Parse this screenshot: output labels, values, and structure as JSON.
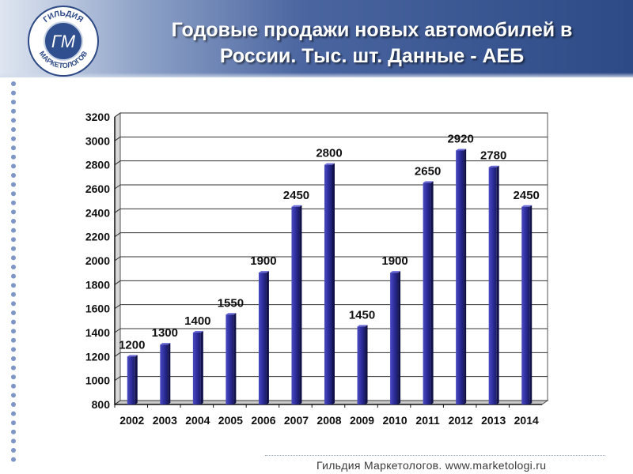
{
  "title_lines": [
    "Годовые продажи новых автомобилей в",
    "России.  Тыс. шт. Данные - АЕБ"
  ],
  "logo": {
    "top_text": "ГИЛЬДИЯ",
    "bottom_text": "МАРКЕТОЛОГОВ",
    "monogram": "ГМ"
  },
  "footer": "Гильдия Маркетологов. www.marketologi.ru",
  "colors": {
    "bar": "#26268a",
    "bar_light": "#4b4bc2",
    "header_dark": "#2d4a86",
    "dots": "#7e96c6"
  },
  "chart_data": {
    "type": "bar",
    "categories": [
      "2002",
      "2003",
      "2004",
      "2005",
      "2006",
      "2007",
      "2008",
      "2009",
      "2010",
      "2011",
      "2012",
      "2013",
      "2014"
    ],
    "values": [
      1200,
      1300,
      1400,
      1550,
      1900,
      2450,
      2800,
      1450,
      1900,
      2650,
      2920,
      2780,
      2450
    ],
    "ylim": [
      800,
      3200
    ],
    "yticks": [
      800,
      1000,
      1200,
      1400,
      1600,
      1800,
      2000,
      2200,
      2400,
      2600,
      2800,
      3000,
      3200
    ],
    "grid": true,
    "data_labels": true
  }
}
